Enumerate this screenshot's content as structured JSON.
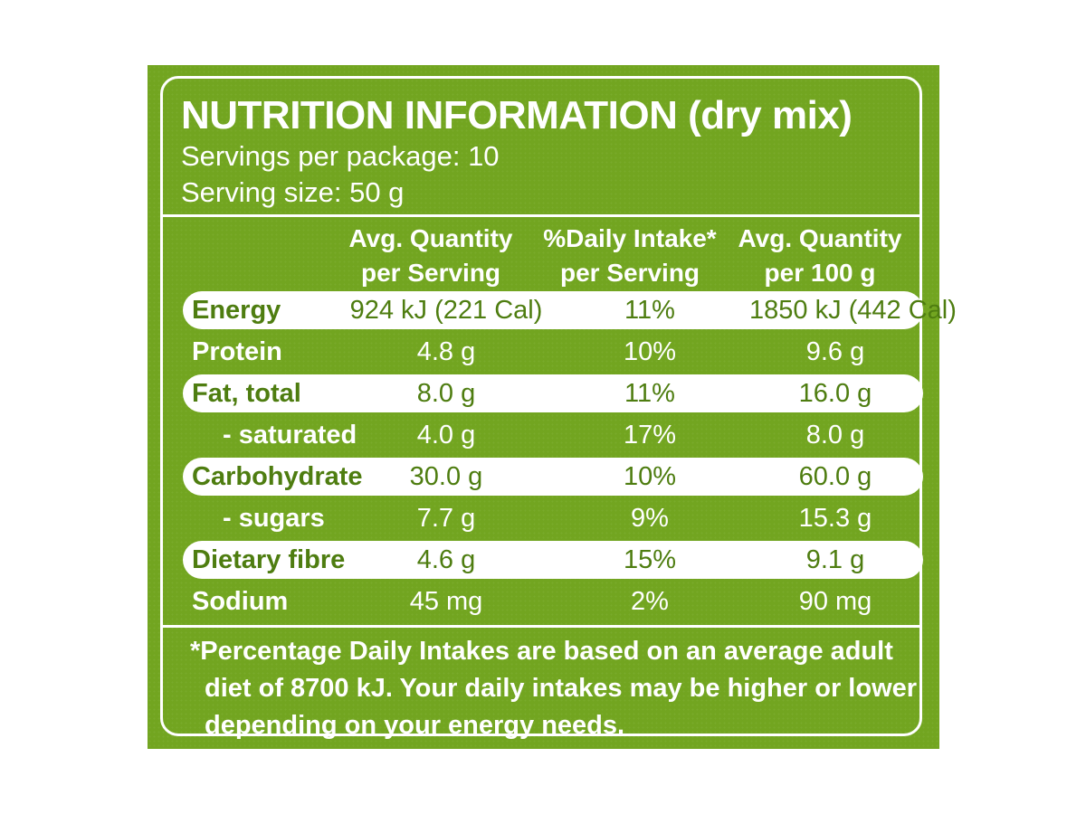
{
  "title": "NUTRITION INFORMATION (dry mix)",
  "servings_per_package": "Servings per package: 10",
  "serving_size": "Serving size: 50 g",
  "columns": [
    {
      "line1": "Avg. Quantity",
      "line2": "per Serving"
    },
    {
      "line1": "%Daily Intake*",
      "line2": "per Serving"
    },
    {
      "line1": "Avg. Quantity",
      "line2": "per 100 g"
    }
  ],
  "rows": [
    {
      "label": "Energy",
      "per_serving": "924 kJ (221 Cal)",
      "daily_intake": "11%",
      "per_100g": "1850 kJ (442 Cal)"
    },
    {
      "label": "Protein",
      "per_serving": "4.8 g",
      "daily_intake": "10%",
      "per_100g": "9.6 g"
    },
    {
      "label": "Fat, total",
      "per_serving": "8.0 g",
      "daily_intake": "11%",
      "per_100g": "16.0 g"
    },
    {
      "label": "- saturated",
      "per_serving": "4.0 g",
      "daily_intake": "17%",
      "per_100g": "8.0 g"
    },
    {
      "label": "Carbohydrate",
      "per_serving": "30.0 g",
      "daily_intake": "10%",
      "per_100g": "60.0 g"
    },
    {
      "label": "- sugars",
      "per_serving": "7.7 g",
      "daily_intake": "9%",
      "per_100g": "15.3 g"
    },
    {
      "label": "Dietary fibre",
      "per_serving": "4.6 g",
      "daily_intake": "15%",
      "per_100g": "9.1 g"
    },
    {
      "label": "Sodium",
      "per_serving": "45 mg",
      "daily_intake": "2%",
      "per_100g": "90 mg"
    }
  ],
  "footnote": {
    "line1": "*Percentage Daily Intakes are based on an average adult",
    "line2": "diet of 8700 kJ. Your daily intakes may be higher or lower",
    "line3": "depending on your energy needs."
  },
  "colors": {
    "panel_green": "#72a520",
    "text_green": "#4e7d10",
    "white": "#ffffff"
  }
}
